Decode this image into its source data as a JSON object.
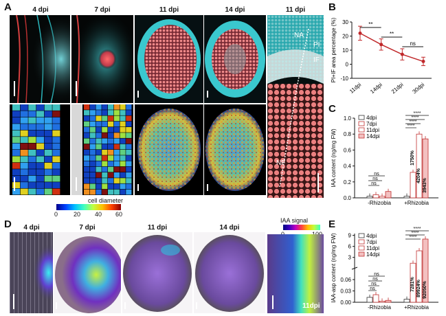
{
  "panelA": {
    "letter": "A",
    "top_labels": [
      "4 dpi",
      "7 dpi",
      "11 dpi",
      "14 dpi",
      "11 dpi"
    ],
    "overlay": {
      "na": "NA",
      "pi": "PI",
      "if": "IF",
      "nf": "NF"
    },
    "colorbar": {
      "title": "cell diameter",
      "ticks": [
        "0",
        "20",
        "40",
        "60"
      ]
    }
  },
  "panelB": {
    "letter": "B",
    "chart_data": {
      "type": "line",
      "categories": [
        "11dpi",
        "14dpi",
        "21dpi",
        "30dpi"
      ],
      "values": [
        22,
        14,
        7,
        2
      ],
      "errors": [
        5,
        4,
        4,
        3
      ],
      "ylabel": "PI+IF area percentage (%)",
      "ylim": [
        -10,
        30
      ],
      "yticks": [
        "-10",
        "0",
        "10",
        "20",
        "30"
      ],
      "annotations": [
        "**",
        "**",
        "ns"
      ],
      "color": "#c0282a"
    }
  },
  "panelC": {
    "letter": "C",
    "chart_data": {
      "type": "bar",
      "groups": [
        "-Rhizobia",
        "+Rhizobia"
      ],
      "series": [
        {
          "name": "4dpi",
          "values": [
            0.02,
            0.02
          ]
        },
        {
          "name": "7dpi",
          "values": [
            0.04,
            0.32
          ]
        },
        {
          "name": "11dpi",
          "values": [
            0.02,
            0.8
          ]
        },
        {
          "name": "14dpi",
          "values": [
            0.08,
            0.74
          ]
        }
      ],
      "ylabel": "IAA content (ng/mg FW)",
      "ylim": [
        0,
        1.0
      ],
      "yticks": [
        "0.0",
        "0.2",
        "0.4",
        "0.6",
        "0.8",
        "1.0"
      ],
      "percent_labels": [
        "1750%",
        "4204%",
        "3943%"
      ],
      "annotations": [
        "ns",
        "ns",
        "ns",
        "****",
        "****",
        "****",
        "****"
      ]
    }
  },
  "panelD": {
    "letter": "D",
    "top_labels": [
      "4 dpi",
      "7 dpi",
      "11 dpi",
      "14 dpi"
    ],
    "colorbar": {
      "title": "IAA signal",
      "ticks": [
        "0",
        "100"
      ]
    },
    "inset_label": "11dpi"
  },
  "panelE": {
    "letter": "E",
    "chart_data": {
      "type": "bar",
      "groups": [
        "-Rhizobia",
        "+Rhizobia"
      ],
      "series": [
        {
          "name": "4dpi",
          "values": [
            0.013,
            0.008
          ]
        },
        {
          "name": "7dpi",
          "values": [
            0.02,
            1.4
          ]
        },
        {
          "name": "11dpi",
          "values": [
            0.003,
            4.8
          ]
        },
        {
          "name": "14dpi",
          "values": [
            0.005,
            8.0
          ]
        }
      ],
      "ylabel": "IAA-asp content (ng/mg FW)",
      "yticks_low": [
        "0.00",
        "0.03",
        "0.06"
      ],
      "yticks_high": [
        "3",
        "6",
        "9"
      ],
      "percent_labels": [
        "7281%",
        "89924%",
        "92050%"
      ],
      "annotations": [
        "ns",
        "ns",
        "ns",
        "ns",
        "****",
        "****",
        "****"
      ]
    }
  },
  "colors": {
    "cyan": "#3ad0d6",
    "red": "#e45050",
    "magenta_bg": "#6a4a8e",
    "dark_red": "#b22222"
  }
}
